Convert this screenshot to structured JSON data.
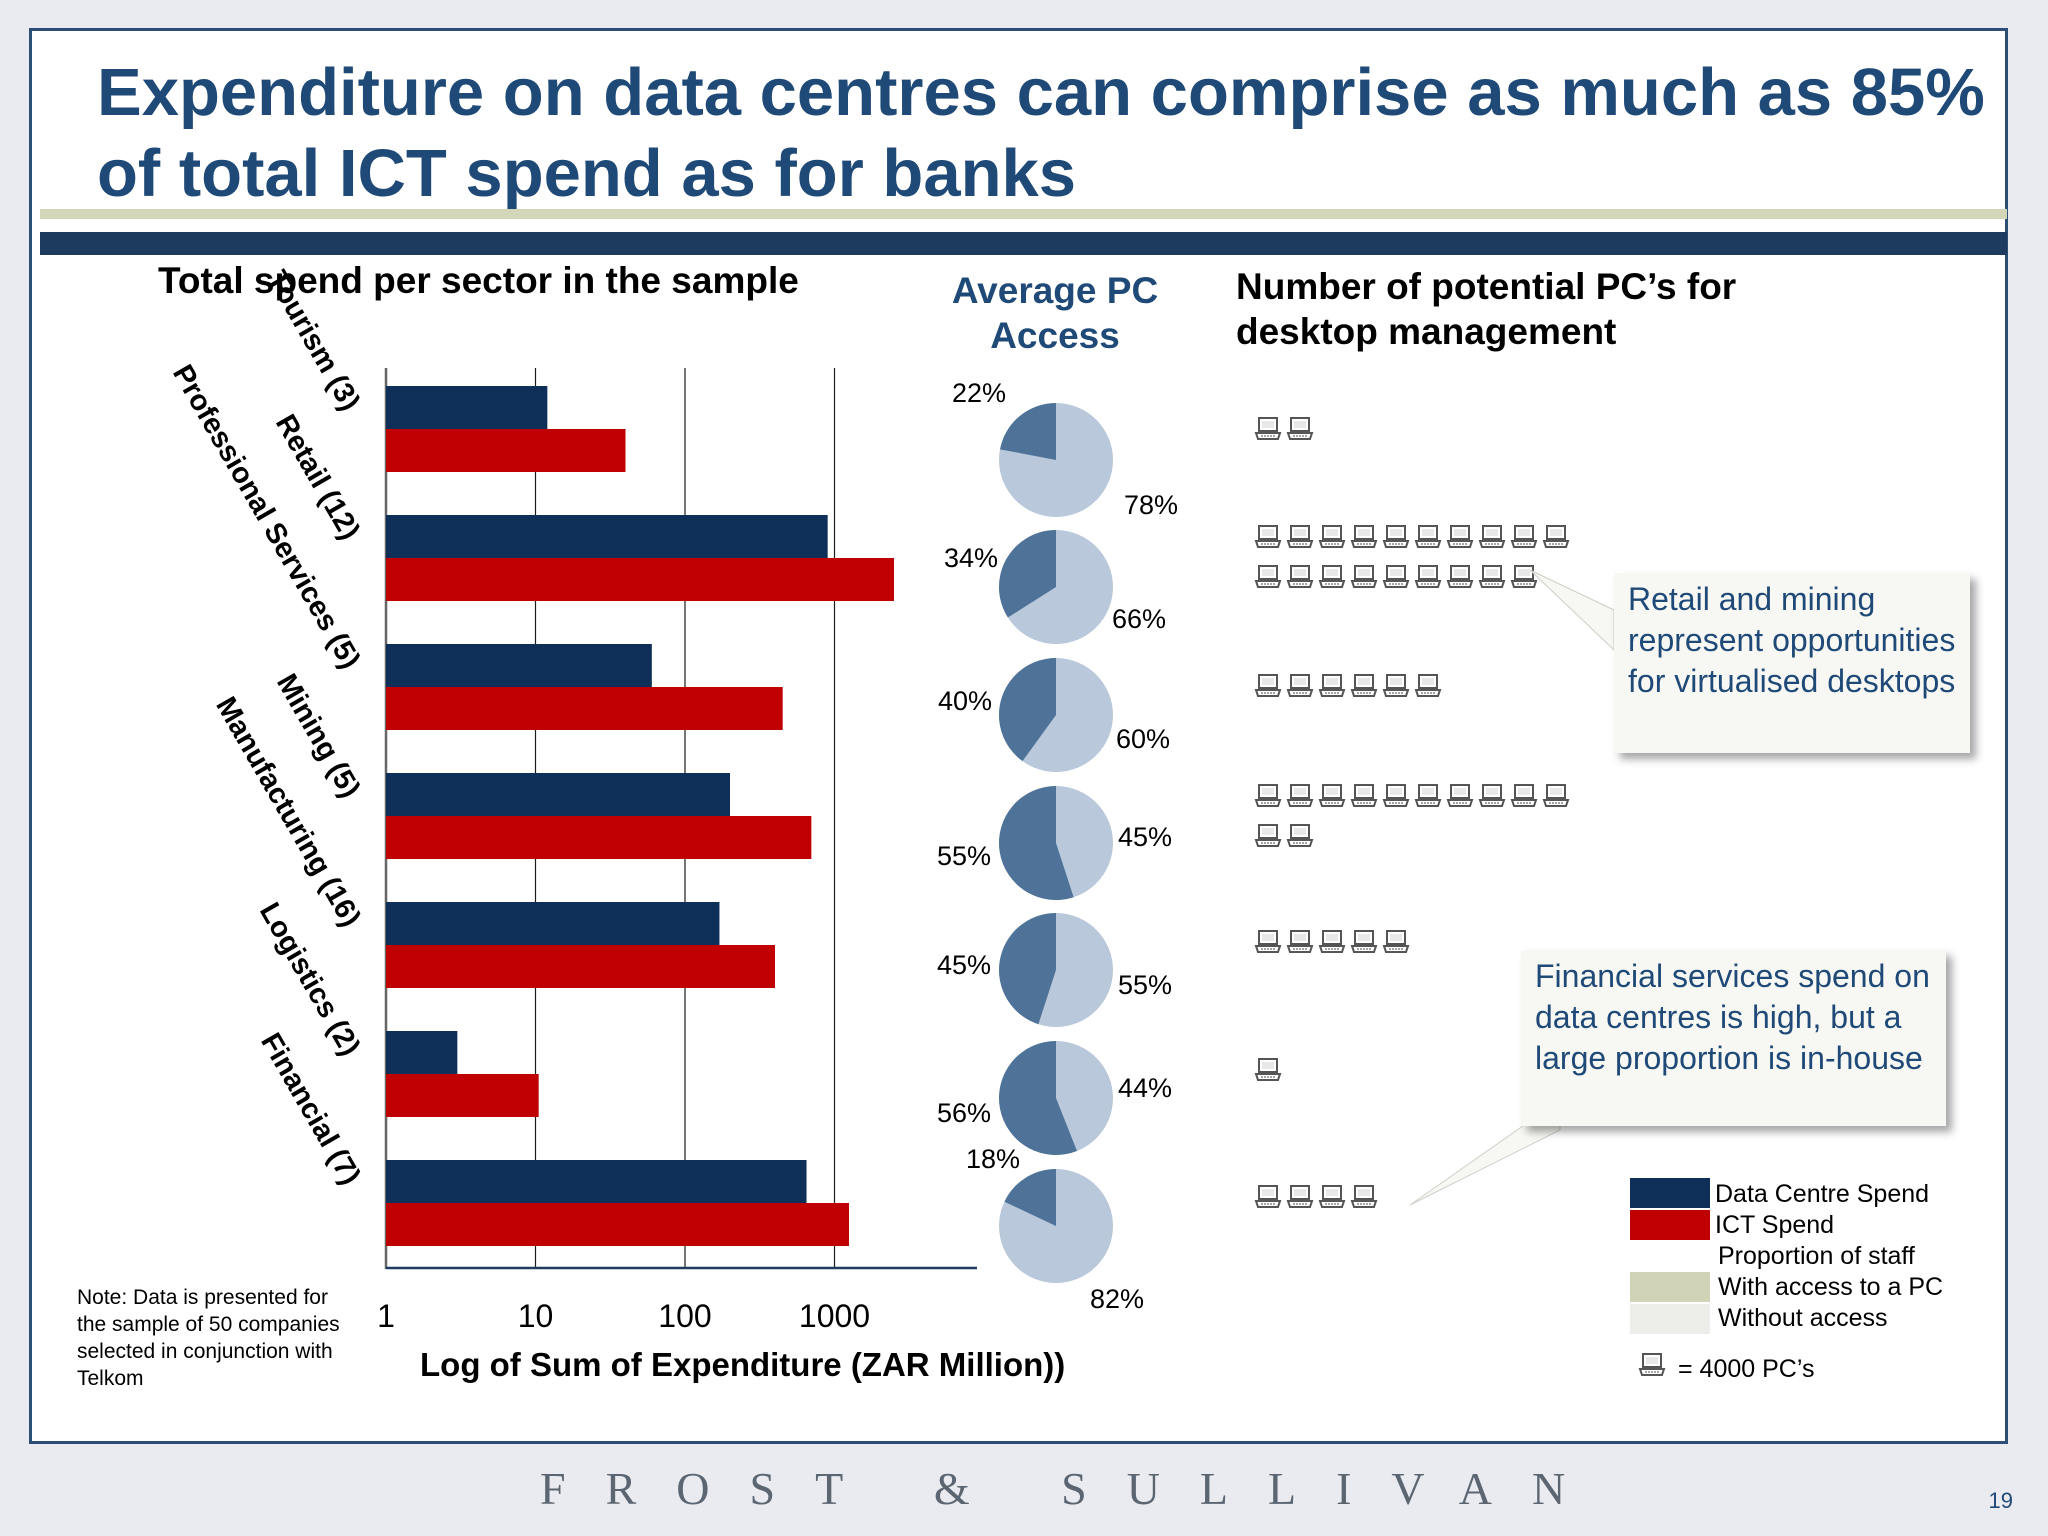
{
  "title": "Expenditure on data centres can comprise as much as 85% of total ICT spend as for banks",
  "bar_chart_title": "Total spend per sector in the sample",
  "pie_title": "Average PC Access",
  "pc_title": "Number of potential PC’s for desktop management",
  "note": "Note: Data is presented for the sample of 50 companies selected in conjunction with Telkom",
  "colors": {
    "data_centre": "#0e2f57",
    "ict": "#c00000",
    "with_access": "#4f7398",
    "without_access": "#b9c8da",
    "legend_with_access": "#d0d3b5",
    "legend_without_access": "#ededea"
  },
  "callouts": {
    "retail_mining": "Retail and mining represent opportunities for virtualised desktops",
    "financial": "Financial services spend on data centres is high, but a large proportion is in-house"
  },
  "legend": {
    "data_centre": "Data Centre Spend",
    "ict": "ICT Spend",
    "proportion": "Proportion of staff",
    "with_access": "With access to a PC",
    "without_access": "Without access",
    "pc_unit": "= 4000 PC’s",
    "icon": "laptop-icon"
  },
  "footer": {
    "brand": "FROST & SULLIVAN",
    "page": "19"
  },
  "chart_data": [
    {
      "type": "bar",
      "orientation": "horizontal",
      "title": "Total spend per sector in the sample",
      "xlabel": "Log of Sum of Expenditure (ZAR Million))",
      "x_scale": "log",
      "xlim": [
        1,
        10000
      ],
      "x_ticks": [
        "1",
        "10",
        "100",
        "1000"
      ],
      "categories": [
        "Tourism (3)",
        "Retail (12)",
        "Professional Services (5)",
        "Mining (5)",
        "Manufacturing (16)",
        "Logistics (2)",
        "Financial (7)"
      ],
      "series": [
        {
          "name": "Data Centre Spend",
          "values": [
            12,
            900,
            60,
            200,
            170,
            3,
            650
          ]
        },
        {
          "name": "ICT Spend",
          "values": [
            40,
            2500,
            450,
            700,
            400,
            10.5,
            1250
          ]
        }
      ]
    },
    {
      "type": "pie",
      "title": "Average PC Access",
      "categories": [
        "Tourism (3)",
        "Retail (12)",
        "Professional Services (5)",
        "Mining (5)",
        "Manufacturing (16)",
        "Logistics (2)",
        "Financial (7)"
      ],
      "series": [
        {
          "name": "With access to a PC",
          "values": [
            22,
            34,
            40,
            55,
            45,
            56,
            18
          ]
        },
        {
          "name": "Without access",
          "values": [
            78,
            66,
            60,
            45,
            55,
            44,
            82
          ]
        }
      ],
      "labels_with": [
        "22%",
        "34%",
        "40%",
        "55%",
        "45%",
        "56%",
        "18%"
      ],
      "labels_without": [
        "78%",
        "66%",
        "60%",
        "45%",
        "55%",
        "44%",
        "82%"
      ]
    },
    {
      "type": "table",
      "title": "Number of potential PC’s for desktop management",
      "unit": "1 icon = 4000 PC’s",
      "categories": [
        "Tourism (3)",
        "Retail (12)",
        "Professional Services (5)",
        "Mining (5)",
        "Manufacturing (16)",
        "Logistics (2)",
        "Financial (7)"
      ],
      "icon_counts": [
        2,
        19,
        6,
        12,
        5,
        1,
        4
      ]
    }
  ]
}
